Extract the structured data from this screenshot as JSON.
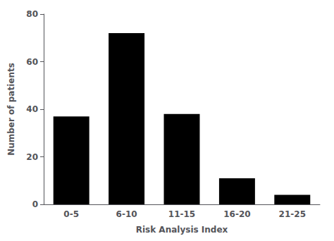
{
  "chart_data": {
    "type": "bar",
    "categories": [
      "0-5",
      "6-10",
      "11-15",
      "16-20",
      "21-25"
    ],
    "values": [
      37,
      72,
      38,
      11,
      4
    ],
    "color": "#000000",
    "xlabel": "Risk Analysis Index",
    "ylabel": "Number of patients",
    "ylim": [
      0,
      80
    ],
    "yticks": [
      0,
      20,
      40,
      60,
      80
    ],
    "grid": false
  }
}
